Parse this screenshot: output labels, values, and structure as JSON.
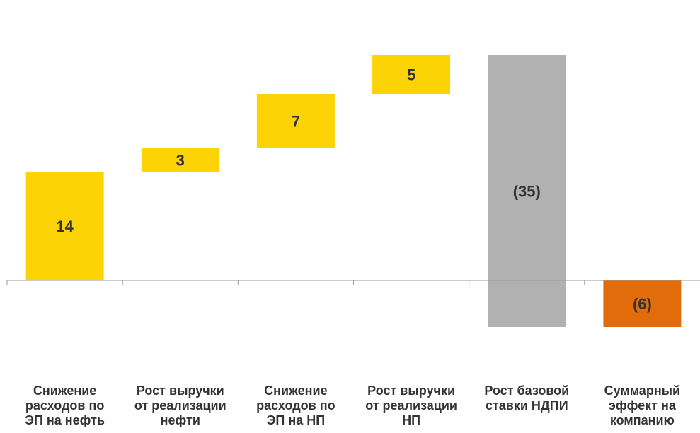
{
  "chart_data": {
    "type": "bar",
    "subtype": "waterfall",
    "categories": [
      "Снижение расходов по ЭП на нефть",
      "Рост выручки от реализации нефти",
      "Снижение расходов по ЭП на НП",
      "Рост выручки от реализации НП",
      "Рост базовой ставки НДПИ",
      "Суммарный эффект на компанию"
    ],
    "category_lines": [
      [
        "Снижение",
        "расходов по",
        "ЭП на нефть"
      ],
      [
        "Рост выручки",
        "от реализации",
        "нефти"
      ],
      [
        "Снижение",
        "расходов по",
        "ЭП на НП"
      ],
      [
        "Рост выручки",
        "от реализации",
        "НП"
      ],
      [
        "Рост базовой",
        "ставки НДПИ"
      ],
      [
        "Суммарный",
        "эффект на",
        "компанию"
      ]
    ],
    "values": [
      14,
      3,
      7,
      5,
      -35,
      -6
    ],
    "data_labels": [
      "14",
      "3",
      "7",
      "5",
      "(35)",
      "(6)"
    ],
    "bar_roles": [
      "increase",
      "increase",
      "increase",
      "increase",
      "decrease",
      "total"
    ],
    "colors": {
      "increase": "#FCD406",
      "decrease": "#B1B1B1",
      "total": "#E36C0A",
      "axis": "#9A9A9A",
      "text": "#333333"
    },
    "ylim": [
      -6,
      29
    ],
    "grid": false,
    "legend": "none"
  }
}
